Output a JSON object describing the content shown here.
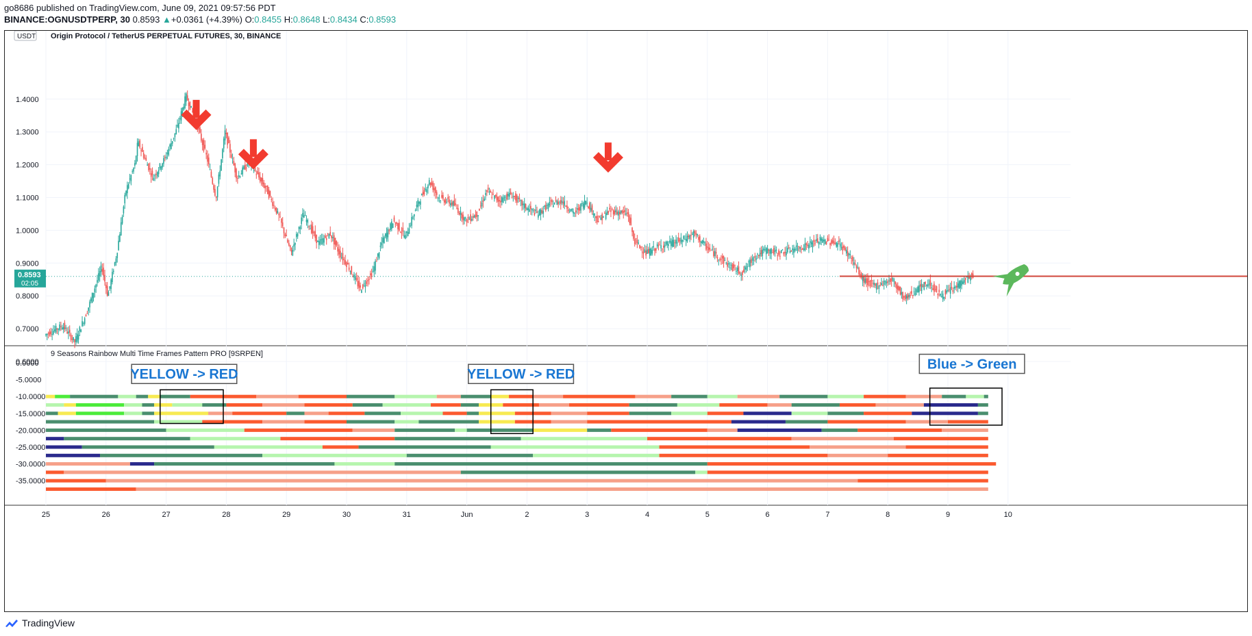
{
  "header": {
    "published": "go8686 published on TradingView.com, June 09, 2021 09:57:56 PDT",
    "symbol": "BINANCE:OGNUSDTPERP, 30",
    "last": "0.8593",
    "change_arrow": "▲",
    "change": "+0.0361 (+4.39%)",
    "o_label": "O:",
    "o_val": "0.8455",
    "h_label": "H:",
    "h_val": "0.8648",
    "l_label": "L:",
    "l_val": "0.8434",
    "c_label": "C:",
    "c_val": "0.8593"
  },
  "footer": {
    "brand": "TradingView",
    "logo_icon": "tradingview-logo-icon"
  },
  "colors": {
    "up": "#26a69a",
    "down": "#ef5350",
    "arrow": "#f23b2f",
    "rocket": "#5cb85c",
    "dark_green": "#4a8e6e",
    "light_green": "#b6f5ae",
    "bright_green": "#4ceb3a",
    "yellow": "#f7ea52",
    "orange_red": "#fb5a2f",
    "salmon": "#f6a089",
    "navy": "#2a2a8c"
  },
  "chart_data": [
    {
      "type": "candlestick",
      "title": "Origin Protocol / TetherUS PERPETUAL FUTURES, 30, BINANCE",
      "currency_badge": "USDT",
      "ylim": [
        0.57,
        1.48
      ],
      "y_ticks": [
        "1.4000",
        "1.3000",
        "1.2000",
        "1.1000",
        "1.0000",
        "0.9000",
        "0.8000",
        "0.7000",
        "0.6000"
      ],
      "x_ticks": [
        "25",
        "26",
        "27",
        "28",
        "29",
        "30",
        "31",
        "Jun",
        "2",
        "3",
        "4",
        "5",
        "6",
        "7",
        "8",
        "9",
        "10"
      ],
      "last_price": "0.8593",
      "countdown": "02:05",
      "price_path": [
        [
          0.0,
          0.68
        ],
        [
          0.3,
          0.71
        ],
        [
          0.5,
          0.66
        ],
        [
          0.7,
          0.75
        ],
        [
          0.95,
          0.89
        ],
        [
          1.05,
          0.8
        ],
        [
          1.2,
          0.93
        ],
        [
          1.35,
          1.12
        ],
        [
          1.5,
          1.2
        ],
        [
          1.55,
          1.27
        ],
        [
          1.8,
          1.16
        ],
        [
          2.0,
          1.22
        ],
        [
          2.2,
          1.31
        ],
        [
          2.35,
          1.41
        ],
        [
          2.5,
          1.34
        ],
        [
          2.7,
          1.22
        ],
        [
          2.85,
          1.1
        ],
        [
          3.0,
          1.3
        ],
        [
          3.2,
          1.16
        ],
        [
          3.4,
          1.21
        ],
        [
          3.7,
          1.12
        ],
        [
          3.9,
          1.04
        ],
        [
          4.1,
          0.93
        ],
        [
          4.3,
          1.05
        ],
        [
          4.55,
          0.96
        ],
        [
          4.75,
          0.99
        ],
        [
          4.9,
          0.93
        ],
        [
          5.05,
          0.89
        ],
        [
          5.25,
          0.82
        ],
        [
          5.45,
          0.87
        ],
        [
          5.6,
          0.96
        ],
        [
          5.8,
          1.03
        ],
        [
          6.0,
          0.98
        ],
        [
          6.2,
          1.08
        ],
        [
          6.4,
          1.15
        ],
        [
          6.55,
          1.1
        ],
        [
          6.8,
          1.08
        ],
        [
          7.0,
          1.03
        ],
        [
          7.2,
          1.05
        ],
        [
          7.35,
          1.12
        ],
        [
          7.55,
          1.09
        ],
        [
          7.75,
          1.11
        ],
        [
          8.0,
          1.07
        ],
        [
          8.2,
          1.05
        ],
        [
          8.4,
          1.08
        ],
        [
          8.6,
          1.09
        ],
        [
          8.8,
          1.05
        ],
        [
          9.0,
          1.09
        ],
        [
          9.2,
          1.03
        ],
        [
          9.4,
          1.06
        ],
        [
          9.7,
          1.05
        ],
        [
          9.8,
          0.97
        ],
        [
          10.0,
          0.93
        ],
        [
          10.2,
          0.95
        ],
        [
          10.4,
          0.96
        ],
        [
          10.6,
          0.97
        ],
        [
          10.8,
          0.99
        ],
        [
          11.0,
          0.95
        ],
        [
          11.2,
          0.92
        ],
        [
          11.4,
          0.89
        ],
        [
          11.6,
          0.87
        ],
        [
          11.8,
          0.92
        ],
        [
          12.0,
          0.94
        ],
        [
          12.2,
          0.93
        ],
        [
          12.4,
          0.94
        ],
        [
          12.6,
          0.95
        ],
        [
          12.9,
          0.97
        ],
        [
          13.2,
          0.96
        ],
        [
          13.4,
          0.92
        ],
        [
          13.6,
          0.85
        ],
        [
          13.8,
          0.83
        ],
        [
          14.1,
          0.85
        ],
        [
          14.3,
          0.79
        ],
        [
          14.5,
          0.82
        ],
        [
          14.7,
          0.84
        ],
        [
          14.9,
          0.8
        ],
        [
          15.1,
          0.82
        ],
        [
          15.3,
          0.85
        ],
        [
          15.42,
          0.86
        ]
      ],
      "resistance_level": 0.86,
      "annotations": [
        {
          "type": "down-arrow",
          "x": 2.5,
          "y": 1.31
        },
        {
          "type": "down-arrow",
          "x": 3.45,
          "y": 1.19
        },
        {
          "type": "down-arrow",
          "x": 9.35,
          "y": 1.18
        },
        {
          "type": "rocket",
          "x": 16.1,
          "y": 0.86
        }
      ]
    },
    {
      "type": "heatmap",
      "title": "9 Seasons Rainbow Multi Time Frames Pattern PRO [9SRPEN]",
      "ylim": [
        2.5,
        -40
      ],
      "y_ticks": [
        "0.0000",
        "-5.0000",
        "-10.0000",
        "-15.0000",
        "-20.0000",
        "-25.0000",
        "-30.0000",
        "-35.0000"
      ],
      "row_levels": [
        -10,
        -12.5,
        -15,
        -17.5,
        -20,
        -22.5,
        -25,
        -27.5,
        -30,
        -32.5,
        -35,
        -37.5
      ],
      "color_codes": {
        "G": "dark_green",
        "L": "light_green",
        "B": "bright_green",
        "Y": "yellow",
        "R": "orange_red",
        "S": "salmon",
        "N": "navy"
      },
      "rows": [
        [
          [
            "Y",
            0.0
          ],
          [
            "B",
            0.15
          ],
          [
            "G",
            0.4
          ],
          [
            "L",
            1.2
          ],
          [
            "G",
            1.5
          ],
          [
            "Y",
            1.7
          ],
          [
            "G",
            1.9
          ],
          [
            "R",
            2.4
          ],
          [
            "S",
            3.5
          ],
          [
            "R",
            4.2
          ],
          [
            "G",
            5.0
          ],
          [
            "L",
            5.8
          ],
          [
            "S",
            6.5
          ],
          [
            "G",
            6.9
          ],
          [
            "Y",
            7.4
          ],
          [
            "R",
            7.7
          ],
          [
            "S",
            8.1
          ],
          [
            "R",
            8.6
          ],
          [
            "S",
            9.8
          ],
          [
            "G",
            10.4
          ],
          [
            "L",
            11.0
          ],
          [
            "S",
            11.5
          ],
          [
            "G",
            12.2
          ],
          [
            "L",
            13.0
          ],
          [
            "R",
            13.6
          ],
          [
            "S",
            14.3
          ],
          [
            "G",
            14.9
          ],
          [
            "L",
            15.3
          ],
          [
            "G",
            15.6
          ]
        ],
        [
          [
            "L",
            0.0
          ],
          [
            "Y",
            0.3
          ],
          [
            "B",
            0.5
          ],
          [
            "L",
            1.3
          ],
          [
            "G",
            1.6
          ],
          [
            "Y",
            1.8
          ],
          [
            "L",
            2.1
          ],
          [
            "G",
            2.6
          ],
          [
            "R",
            3.0
          ],
          [
            "S",
            3.6
          ],
          [
            "R",
            4.3
          ],
          [
            "G",
            5.1
          ],
          [
            "L",
            5.6
          ],
          [
            "R",
            6.4
          ],
          [
            "G",
            6.9
          ],
          [
            "Y",
            7.2
          ],
          [
            "R",
            7.6
          ],
          [
            "S",
            8.2
          ],
          [
            "R",
            8.7
          ],
          [
            "G",
            9.7
          ],
          [
            "L",
            10.5
          ],
          [
            "R",
            11.2
          ],
          [
            "S",
            12.0
          ],
          [
            "G",
            12.4
          ],
          [
            "R",
            13.2
          ],
          [
            "S",
            13.8
          ],
          [
            "N",
            14.6
          ],
          [
            "G",
            15.5
          ]
        ],
        [
          [
            "G",
            0.0
          ],
          [
            "Y",
            0.2
          ],
          [
            "B",
            0.5
          ],
          [
            "L",
            1.3
          ],
          [
            "G",
            1.6
          ],
          [
            "Y",
            1.8
          ],
          [
            "S",
            2.7
          ],
          [
            "R",
            3.1
          ],
          [
            "G",
            4.0
          ],
          [
            "S",
            4.3
          ],
          [
            "R",
            4.7
          ],
          [
            "G",
            5.3
          ],
          [
            "L",
            5.9
          ],
          [
            "R",
            6.6
          ],
          [
            "G",
            7.0
          ],
          [
            "Y",
            7.2
          ],
          [
            "R",
            7.8
          ],
          [
            "S",
            8.4
          ],
          [
            "R",
            9.0
          ],
          [
            "G",
            9.7
          ],
          [
            "L",
            10.4
          ],
          [
            "R",
            11.0
          ],
          [
            "N",
            11.6
          ],
          [
            "L",
            12.4
          ],
          [
            "G",
            13.0
          ],
          [
            "R",
            13.6
          ],
          [
            "N",
            14.4
          ],
          [
            "G",
            15.5
          ]
        ],
        [
          [
            "G",
            0.0
          ],
          [
            "L",
            1.8
          ],
          [
            "R",
            2.6
          ],
          [
            "S",
            3.6
          ],
          [
            "R",
            4.3
          ],
          [
            "G",
            5.0
          ],
          [
            "L",
            5.8
          ],
          [
            "G",
            6.2
          ],
          [
            "Y",
            7.2
          ],
          [
            "R",
            7.8
          ],
          [
            "S",
            8.4
          ],
          [
            "R",
            9.0
          ],
          [
            "N",
            11.4
          ],
          [
            "G",
            12.3
          ],
          [
            "R",
            13.0
          ],
          [
            "S",
            14.3
          ],
          [
            "R",
            15.0
          ]
        ],
        [
          [
            "G",
            0.0
          ],
          [
            "L",
            2.0
          ],
          [
            "R",
            3.3
          ],
          [
            "S",
            5.1
          ],
          [
            "G",
            5.8
          ],
          [
            "L",
            6.8
          ],
          [
            "G",
            7.0
          ],
          [
            "Y",
            8.1
          ],
          [
            "G",
            9.0
          ],
          [
            "R",
            9.4
          ],
          [
            "S",
            11.0
          ],
          [
            "N",
            11.5
          ],
          [
            "G",
            12.9
          ],
          [
            "R",
            13.5
          ],
          [
            "S",
            14.9
          ]
        ],
        [
          [
            "N",
            0.0
          ],
          [
            "G",
            0.3
          ],
          [
            "L",
            2.4
          ],
          [
            "R",
            3.9
          ],
          [
            "G",
            5.8
          ],
          [
            "L",
            7.9
          ],
          [
            "R",
            10.0
          ],
          [
            "S",
            12.4
          ],
          [
            "R",
            14.1
          ]
        ],
        [
          [
            "N",
            0.0
          ],
          [
            "G",
            0.6
          ],
          [
            "L",
            2.8
          ],
          [
            "R",
            4.6
          ],
          [
            "G",
            5.2
          ],
          [
            "L",
            7.4
          ],
          [
            "R",
            10.2
          ],
          [
            "S",
            12.7
          ],
          [
            "R",
            14.3
          ]
        ],
        [
          [
            "N",
            0.0
          ],
          [
            "G",
            0.9
          ],
          [
            "L",
            3.6
          ],
          [
            "G",
            6.0
          ],
          [
            "L",
            8.1
          ],
          [
            "R",
            10.2
          ],
          [
            "S",
            13.0
          ],
          [
            "R",
            14.0
          ]
        ],
        [
          [
            "S",
            0.0
          ],
          [
            "N",
            1.4
          ],
          [
            "G",
            1.8
          ],
          [
            "L",
            4.8
          ],
          [
            "G",
            5.8
          ],
          [
            "R",
            11.0
          ],
          [
            "S",
            15.8
          ]
        ],
        [
          [
            "R",
            0.0
          ],
          [
            "S",
            0.3
          ],
          [
            "G",
            6.9
          ],
          [
            "L",
            10.8
          ],
          [
            "R",
            11.0
          ]
        ],
        [
          [
            "R",
            0.0
          ],
          [
            "S",
            1.0
          ],
          [
            "R",
            13.5
          ]
        ],
        [
          [
            "R",
            0.0
          ],
          [
            "S",
            1.5
          ]
        ]
      ],
      "labels": [
        {
          "text": "YELLOW -> RED",
          "x": 2.3,
          "y": -3.3
        },
        {
          "text": "YELLOW -> RED",
          "x": 7.9,
          "y": -3.3
        },
        {
          "text": "Blue -> Green",
          "x": 15.4,
          "y": -0.3
        }
      ],
      "highlight_boxes": [
        {
          "x1": 1.9,
          "x2": 2.95,
          "y1": -8.0,
          "y2": -18.0
        },
        {
          "x1": 7.4,
          "x2": 8.1,
          "y1": -8.0,
          "y2": -21.0
        },
        {
          "x1": 14.7,
          "x2": 15.9,
          "y1": -7.5,
          "y2": -18.5
        }
      ]
    }
  ]
}
